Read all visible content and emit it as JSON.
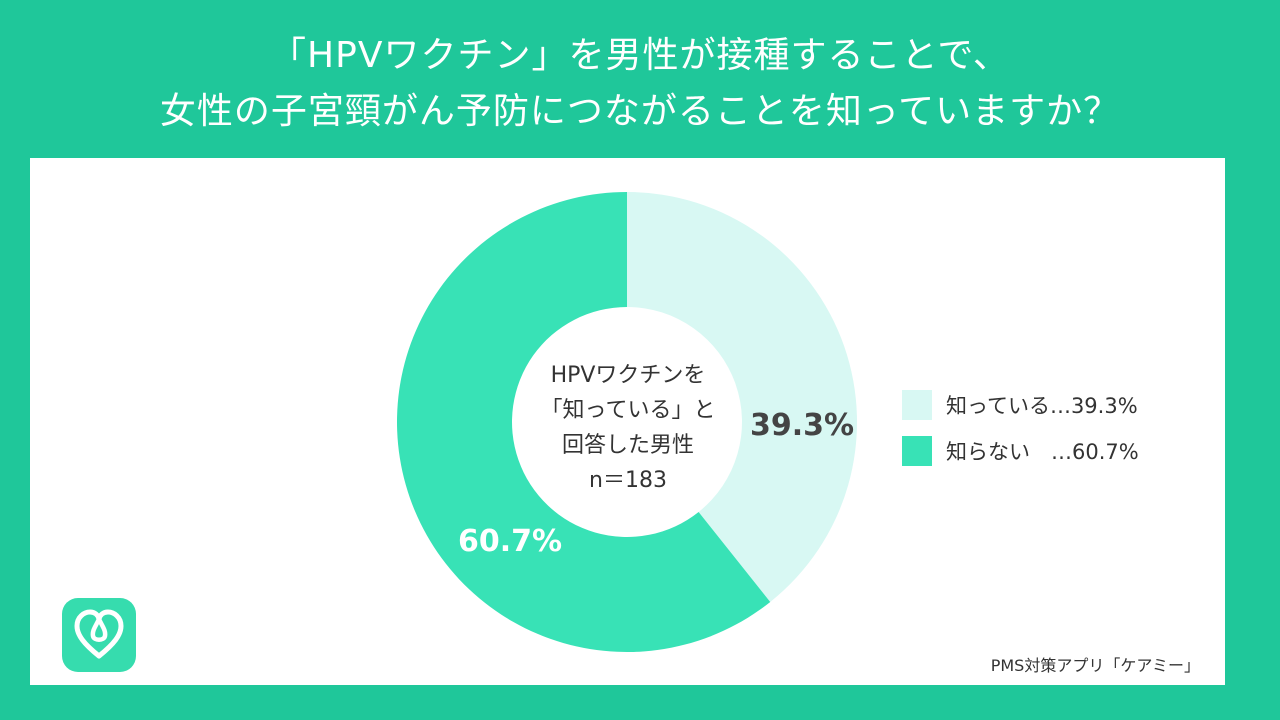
{
  "title": {
    "line1": "「HPVワクチン」を男性が接種することで、",
    "line2": "女性の子宮頸がん予防につながることを知っていますか？"
  },
  "center": {
    "line1": "HPVワクチンを",
    "line2": "「知っている」と",
    "line3": "回答した男性",
    "line4": "n＝183"
  },
  "legend": [
    {
      "label": "知っている…39.3%",
      "color": "#d8f8f3"
    },
    {
      "label": "知らない　…60.7%",
      "color": "#38e2b6"
    }
  ],
  "footer": "PMS対策アプリ「ケアミー」",
  "colors": {
    "background": "#1fc79a",
    "panel": "#ffffff",
    "slice_known": "#d8f8f3",
    "slice_unknown": "#38e2b6"
  },
  "icons": {
    "app_logo": "heart-loop-icon"
  },
  "chart_data": {
    "type": "pie",
    "donut": true,
    "categories": [
      "知っている",
      "知らない"
    ],
    "values": [
      39.3,
      60.7
    ],
    "data_labels": [
      "39.3%",
      "60.7%"
    ],
    "colors": [
      "#d8f8f3",
      "#38e2b6"
    ],
    "legend_position": "right"
  }
}
